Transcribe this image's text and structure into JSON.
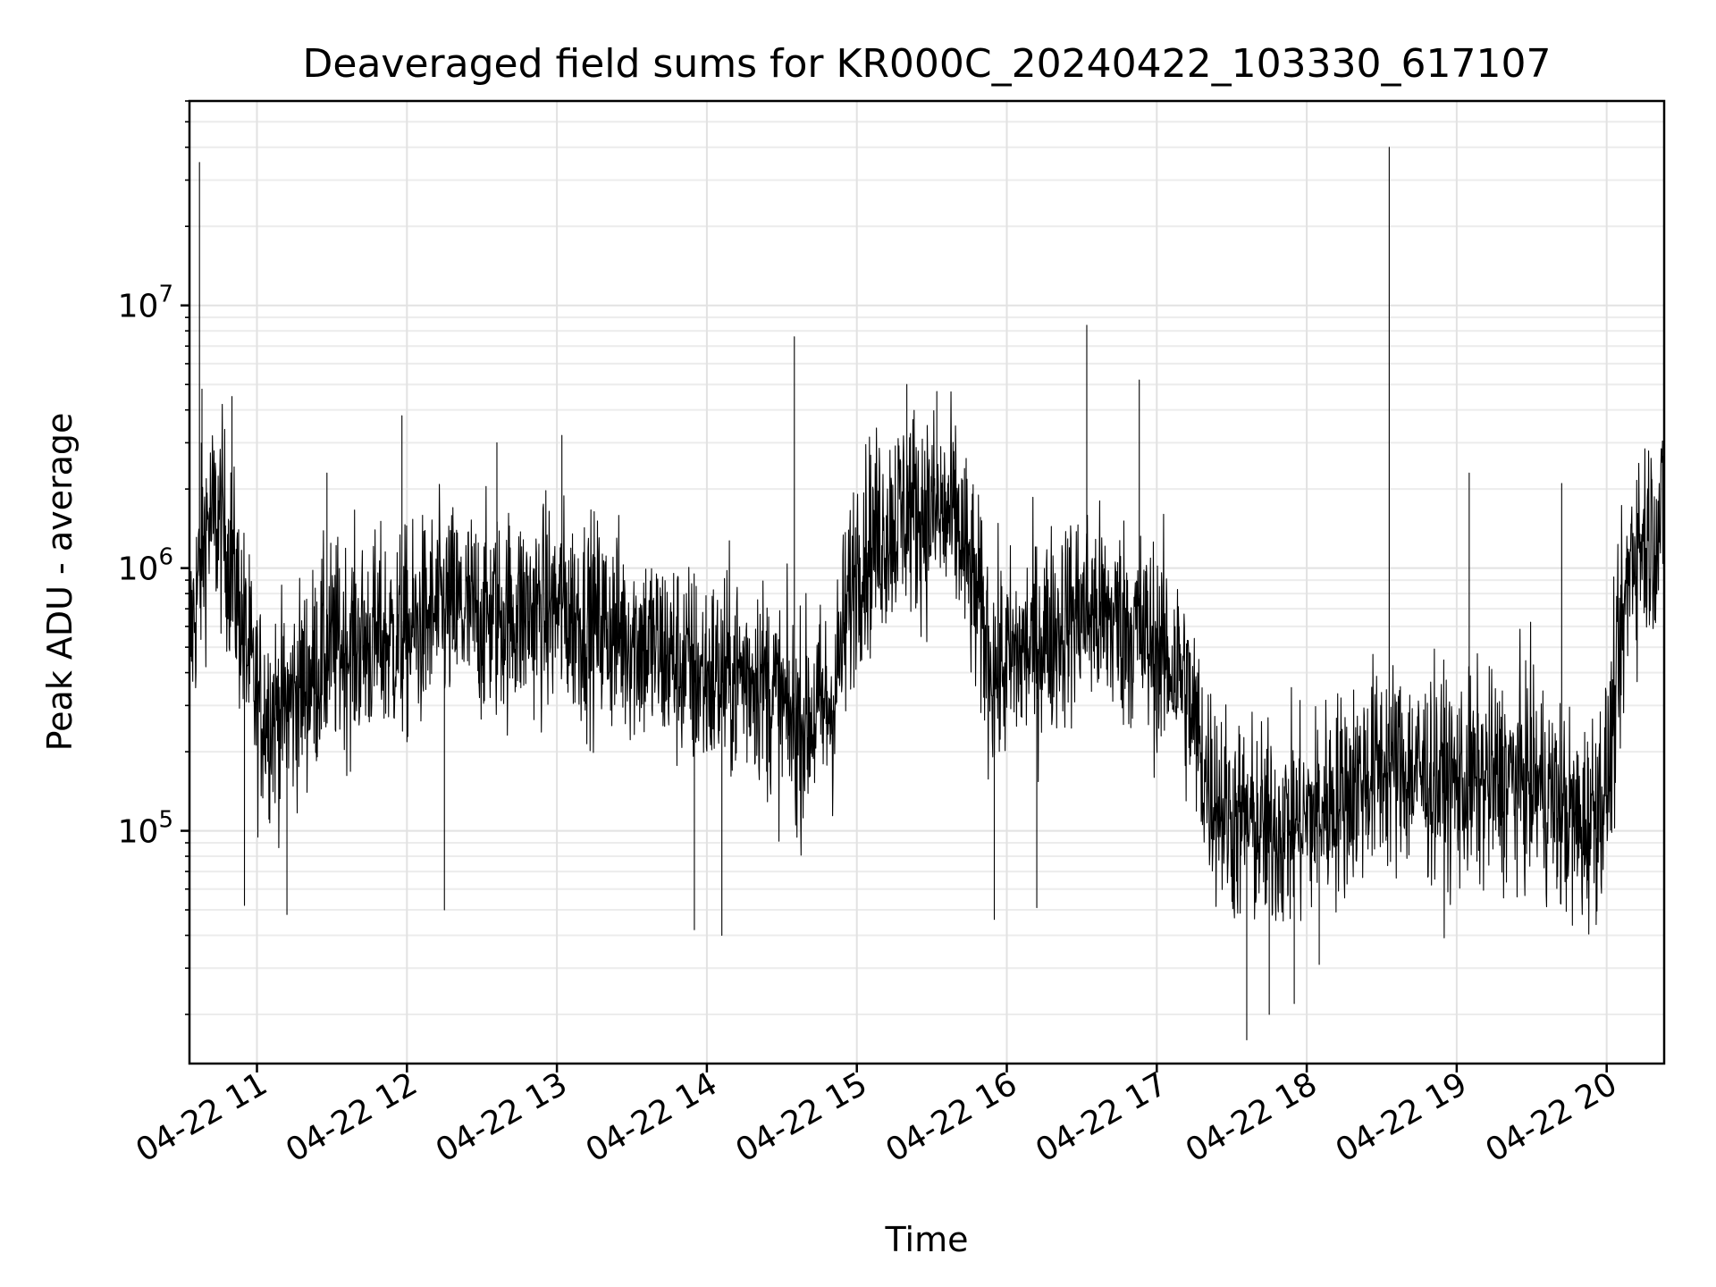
{
  "chart_data": {
    "type": "line",
    "title": "Deaveraged field sums for KR000C_20240422_103330_617107",
    "xlabel": "Time",
    "ylabel": "Peak ADU - average",
    "y_scale": "log",
    "ylim": [
      13000,
      60000000
    ],
    "xlim": [
      "2024-04-22 10:33",
      "2024-04-22 20:23"
    ],
    "grid": true,
    "x_ticks": [
      "04-22 11",
      "04-22 12",
      "04-22 13",
      "04-22 14",
      "04-22 15",
      "04-22 16",
      "04-22 17",
      "04-22 18",
      "04-22 19",
      "04-22 20"
    ],
    "x_tick_times": [
      "2024-04-22 11:00",
      "2024-04-22 12:00",
      "2024-04-22 13:00",
      "2024-04-22 14:00",
      "2024-04-22 15:00",
      "2024-04-22 16:00",
      "2024-04-22 17:00",
      "2024-04-22 18:00",
      "2024-04-22 19:00",
      "2024-04-22 20:00"
    ],
    "y_ticks": [
      {
        "value": 100000,
        "base": "10",
        "exp": "5"
      },
      {
        "value": 1000000,
        "base": "10",
        "exp": "6"
      },
      {
        "value": 10000000,
        "base": "10",
        "exp": "7"
      }
    ],
    "series": [
      {
        "color": "#000000",
        "baseline_x": [
          "2024-04-22 10:33",
          "2024-04-22 10:40",
          "2024-04-22 10:46",
          "2024-04-22 10:52",
          "2024-04-22 11:00",
          "2024-04-22 11:10",
          "2024-04-22 11:30",
          "2024-04-22 12:00",
          "2024-04-22 12:15",
          "2024-04-22 12:30",
          "2024-04-22 13:00",
          "2024-04-22 13:30",
          "2024-04-22 14:00",
          "2024-04-22 14:20",
          "2024-04-22 14:35",
          "2024-04-22 14:50",
          "2024-04-22 15:00",
          "2024-04-22 15:20",
          "2024-04-22 15:40",
          "2024-04-22 15:55",
          "2024-04-22 16:15",
          "2024-04-22 16:30",
          "2024-04-22 16:50",
          "2024-04-22 17:10",
          "2024-04-22 17:20",
          "2024-04-22 17:30",
          "2024-04-22 17:45",
          "2024-04-22 18:00",
          "2024-04-22 18:30",
          "2024-04-22 19:00",
          "2024-04-22 19:30",
          "2024-04-22 19:50",
          "2024-04-22 20:00",
          "2024-04-22 20:10",
          "2024-04-22 20:23"
        ],
        "baseline_y": [
          500000,
          1500000,
          1500000,
          800000,
          300000,
          280000,
          500000,
          550000,
          700000,
          650000,
          700000,
          550000,
          380000,
          400000,
          250000,
          300000,
          1100000,
          1700000,
          1500000,
          400000,
          550000,
          700000,
          600000,
          400000,
          160000,
          110000,
          100000,
          110000,
          180000,
          150000,
          160000,
          100000,
          150000,
          1200000,
          1500000
        ],
        "noise_decades": 0.28,
        "peaks": [
          {
            "x": "2024-04-22 10:37",
            "y": 35000000
          },
          {
            "x": "2024-04-22 10:38",
            "y": 4800000
          },
          {
            "x": "2024-04-22 10:50",
            "y": 4500000
          },
          {
            "x": "2024-04-22 11:28",
            "y": 2300000
          },
          {
            "x": "2024-04-22 11:58",
            "y": 3800000
          },
          {
            "x": "2024-04-22 12:36",
            "y": 3000000
          },
          {
            "x": "2024-04-22 13:02",
            "y": 3200000
          },
          {
            "x": "2024-04-22 14:35",
            "y": 7600000
          },
          {
            "x": "2024-04-22 15:20",
            "y": 5000000
          },
          {
            "x": "2024-04-22 15:32",
            "y": 4700000
          },
          {
            "x": "2024-04-22 16:32",
            "y": 8400000
          },
          {
            "x": "2024-04-22 16:53",
            "y": 5200000
          },
          {
            "x": "2024-04-22 18:33",
            "y": 40000000
          },
          {
            "x": "2024-04-22 19:05",
            "y": 2300000
          },
          {
            "x": "2024-04-22 19:42",
            "y": 2100000
          }
        ],
        "dips": [
          {
            "x": "2024-04-22 10:55",
            "y": 52000
          },
          {
            "x": "2024-04-22 11:12",
            "y": 48000
          },
          {
            "x": "2024-04-22 12:15",
            "y": 50000
          },
          {
            "x": "2024-04-22 13:55",
            "y": 42000
          },
          {
            "x": "2024-04-22 14:06",
            "y": 40000
          },
          {
            "x": "2024-04-22 15:55",
            "y": 46000
          },
          {
            "x": "2024-04-22 16:12",
            "y": 51000
          },
          {
            "x": "2024-04-22 17:36",
            "y": 16000
          },
          {
            "x": "2024-04-22 17:45",
            "y": 20000
          },
          {
            "x": "2024-04-22 17:55",
            "y": 22000
          },
          {
            "x": "2024-04-22 18:05",
            "y": 31000
          }
        ]
      }
    ]
  }
}
